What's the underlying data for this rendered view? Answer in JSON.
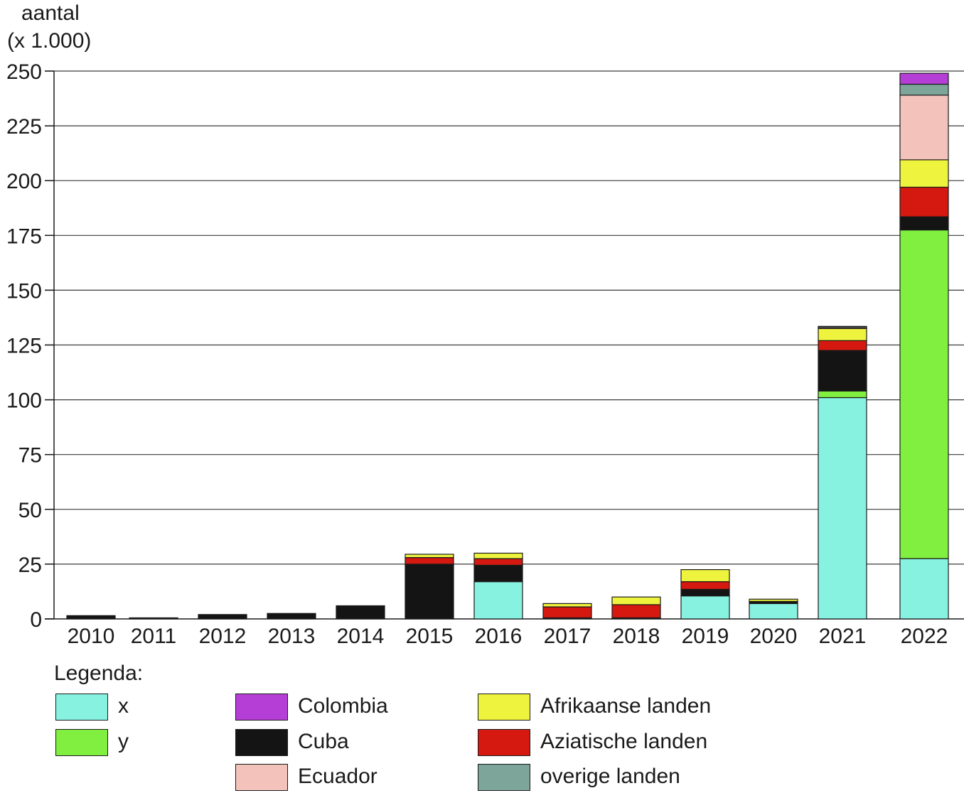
{
  "chart_data": {
    "type": "bar",
    "stacked": true,
    "title": "",
    "ylabel_line1": "aantal",
    "ylabel_line2": "(x 1.000)",
    "xlabel": "",
    "ylim": [
      0,
      250
    ],
    "yticks": [
      0,
      25,
      50,
      75,
      100,
      125,
      150,
      175,
      200,
      225,
      250
    ],
    "grid": true,
    "categories": [
      "2010",
      "2011",
      "2012",
      "2013",
      "2014",
      "2015",
      "2016",
      "2017",
      "2018",
      "2019",
      "2020",
      "2021",
      "2022"
    ],
    "series": [
      {
        "name": "x",
        "color": "#88f2e1",
        "values": [
          0,
          0,
          0,
          0,
          0,
          0,
          17,
          0,
          0,
          10.5,
          7,
          101,
          27.5
        ]
      },
      {
        "name": "y",
        "color": "#80ef40",
        "values": [
          0,
          0,
          0,
          0,
          0,
          0,
          0,
          0,
          0,
          0,
          0,
          3,
          150
        ]
      },
      {
        "name": "Cuba",
        "color": "#141414",
        "values": [
          1.5,
          0.5,
          2,
          2.5,
          6,
          25,
          7.5,
          0.5,
          0.5,
          3,
          1,
          18.5,
          6
        ]
      },
      {
        "name": "Aziatische landen",
        "color": "#d51810",
        "values": [
          0,
          0,
          0,
          0,
          0,
          3,
          3,
          5,
          6,
          3.5,
          0,
          4.5,
          13.5
        ]
      },
      {
        "name": "Afrikaanse landen",
        "color": "#eef33e",
        "values": [
          0,
          0,
          0,
          0,
          0,
          1.5,
          2.5,
          1.5,
          3.5,
          5.5,
          1,
          5.5,
          12.5
        ]
      },
      {
        "name": "Ecuador",
        "color": "#f2c2bb",
        "values": [
          0,
          0,
          0,
          0,
          0,
          0,
          0,
          0,
          0,
          0,
          0,
          0.5,
          29.5
        ]
      },
      {
        "name": "overige landen",
        "color": "#7da59a",
        "values": [
          0,
          0,
          0,
          0,
          0,
          0,
          0,
          0,
          0,
          0,
          0,
          0.5,
          5
        ]
      },
      {
        "name": "Colombia",
        "color": "#b53ed6",
        "values": [
          0,
          0,
          0,
          0,
          0,
          0,
          0,
          0,
          0,
          0,
          0,
          0,
          5
        ]
      }
    ]
  },
  "legend": {
    "title": "Legenda:",
    "items": [
      {
        "label": "x",
        "color": "#88f2e1"
      },
      {
        "label": "y",
        "color": "#80ef40"
      },
      {
        "label": "Colombia",
        "color": "#b53ed6"
      },
      {
        "label": "Cuba",
        "color": "#141414"
      },
      {
        "label": "Ecuador",
        "color": "#f2c2bb"
      },
      {
        "label": "Afrikaanse landen",
        "color": "#eef33e"
      },
      {
        "label": "Aziatische landen",
        "color": "#d51810"
      },
      {
        "label": "overige landen",
        "color": "#7da59a"
      }
    ]
  }
}
